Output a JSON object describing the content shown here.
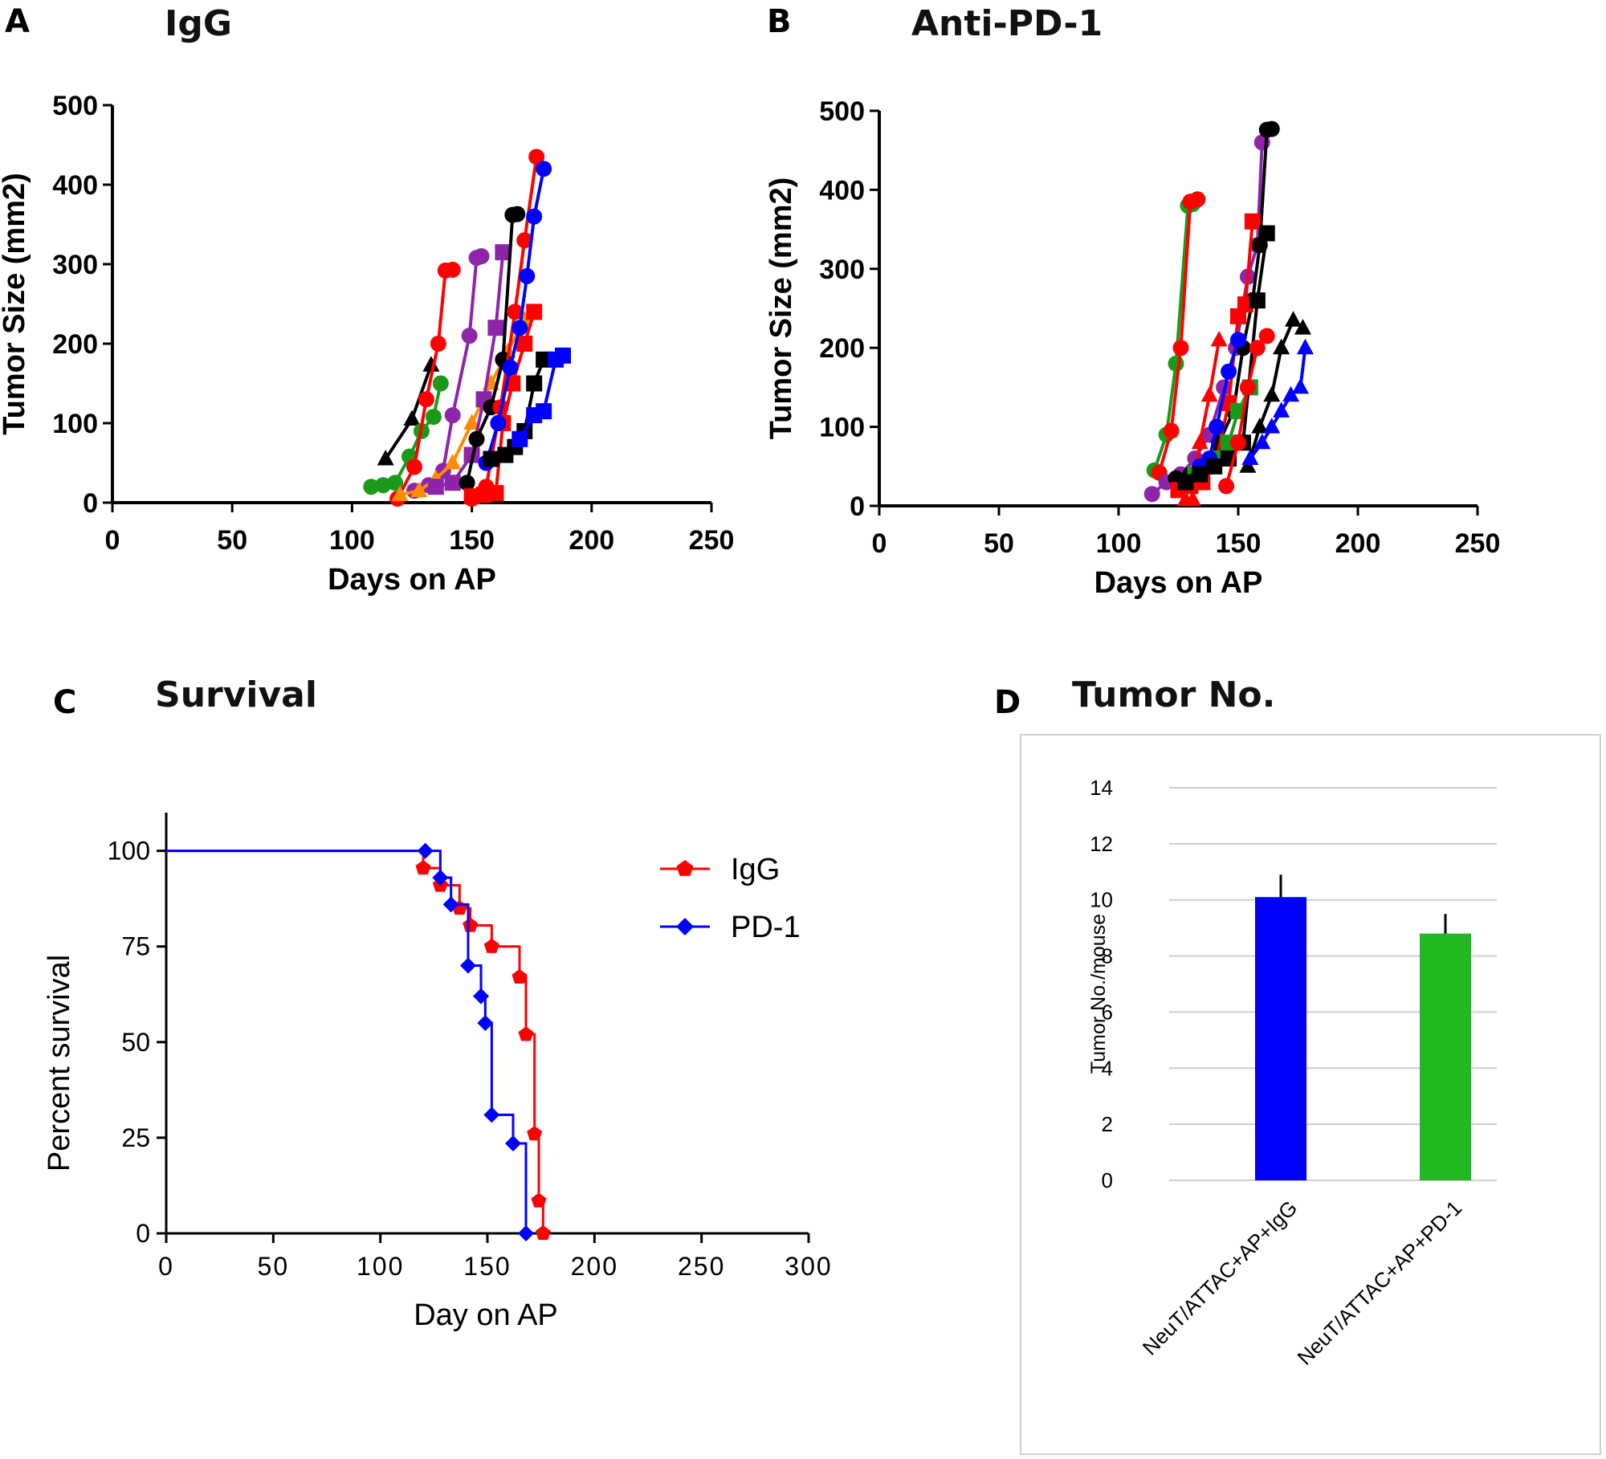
{
  "panels": {
    "A": {
      "letter": "A",
      "title": "IgG"
    },
    "B": {
      "letter": "B",
      "title": "Anti-PD-1"
    },
    "C": {
      "letter": "C",
      "title": "Survival"
    },
    "D": {
      "letter": "D",
      "title": "Tumor No."
    }
  },
  "chart_data": [
    {
      "id": "A",
      "type": "line",
      "title": "IgG",
      "xlabel": "Days on AP",
      "ylabel": "Tumor Size (mm2)",
      "xlim": [
        0,
        250
      ],
      "ylim": [
        0,
        500
      ],
      "xticks": [
        0,
        50,
        100,
        150,
        200,
        250
      ],
      "yticks": [
        0,
        100,
        200,
        300,
        400,
        500
      ],
      "grid": false,
      "series": [
        {
          "color": "#000000",
          "marker": "triangle",
          "points": [
            [
              114,
              55
            ],
            [
              125,
              105
            ],
            [
              133,
              173
            ]
          ]
        },
        {
          "color": "#1a9a1a",
          "marker": "circle",
          "points": [
            [
              108,
              20
            ],
            [
              113,
              22
            ],
            [
              118,
              25
            ],
            [
              124,
              58
            ],
            [
              129,
              90
            ],
            [
              134,
              108
            ],
            [
              137,
              150
            ]
          ]
        },
        {
          "color": "#ff0000",
          "marker": "circle",
          "points": [
            [
              119,
              5
            ],
            [
              126,
              45
            ],
            [
              131,
              130
            ],
            [
              136,
              200
            ],
            [
              139,
              292
            ],
            [
              142,
              293
            ]
          ]
        },
        {
          "color": "#8e24aa",
          "marker": "circle",
          "points": [
            [
              126,
              15
            ],
            [
              132,
              22
            ],
            [
              138,
              40
            ],
            [
              142,
              110
            ],
            [
              149,
              210
            ],
            [
              152,
              308
            ],
            [
              154,
              310
            ]
          ]
        },
        {
          "color": "#ff8c00",
          "marker": "triangle",
          "points": [
            [
              120,
              10
            ],
            [
              128,
              15
            ],
            [
              135,
              30
            ],
            [
              142,
              50
            ],
            [
              150,
              100
            ],
            [
              158,
              150
            ],
            [
              165,
              190
            ],
            [
              172,
              230
            ]
          ]
        },
        {
          "color": "#8e24aa",
          "marker": "square",
          "points": [
            [
              135,
              20
            ],
            [
              142,
              25
            ],
            [
              150,
              60
            ],
            [
              155,
              130
            ],
            [
              160,
              220
            ],
            [
              163,
              315
            ]
          ]
        },
        {
          "color": "#000000",
          "marker": "circle",
          "points": [
            [
              148,
              25
            ],
            [
              152,
              80
            ],
            [
              158,
              120
            ],
            [
              163,
              180
            ],
            [
              167,
              362
            ],
            [
              169,
              363
            ]
          ]
        },
        {
          "color": "#ff0000",
          "marker": "square",
          "points": [
            [
              150,
              8
            ],
            [
              155,
              10
            ],
            [
              160,
              12
            ],
            [
              163,
              100
            ],
            [
              167,
              150
            ],
            [
              172,
              200
            ],
            [
              176,
              240
            ]
          ]
        },
        {
          "color": "#ff0000",
          "marker": "circle",
          "points": [
            [
              150,
              5
            ],
            [
              156,
              20
            ],
            [
              162,
              120
            ],
            [
              168,
              240
            ],
            [
              172,
              330
            ],
            [
              177,
              435
            ]
          ]
        },
        {
          "color": "#0000ff",
          "marker": "circle",
          "points": [
            [
              156,
              50
            ],
            [
              161,
              100
            ],
            [
              166,
              170
            ],
            [
              170,
              220
            ],
            [
              173,
              285
            ],
            [
              176,
              360
            ],
            [
              180,
              420
            ]
          ]
        },
        {
          "color": "#000000",
          "marker": "square",
          "points": [
            [
              158,
              55
            ],
            [
              164,
              60
            ],
            [
              168,
              70
            ],
            [
              172,
              90
            ],
            [
              176,
              150
            ],
            [
              180,
              180
            ]
          ]
        },
        {
          "color": "#0000ff",
          "marker": "square",
          "points": [
            [
              170,
              80
            ],
            [
              176,
              110
            ],
            [
              180,
              115
            ],
            [
              185,
              180
            ],
            [
              188,
              185
            ]
          ]
        }
      ]
    },
    {
      "id": "B",
      "type": "line",
      "title": "Anti-PD-1",
      "xlabel": "Days on AP",
      "ylabel": "Tumor Size (mm2)",
      "xlim": [
        0,
        250
      ],
      "ylim": [
        0,
        500
      ],
      "xticks": [
        0,
        50,
        100,
        150,
        200,
        250
      ],
      "yticks": [
        0,
        100,
        200,
        300,
        400,
        500
      ],
      "grid": false,
      "series": [
        {
          "color": "#1a9a1a",
          "marker": "circle",
          "points": [
            [
              115,
              45
            ],
            [
              120,
              90
            ],
            [
              124,
              180
            ],
            [
              129,
              380
            ],
            [
              131,
              382
            ]
          ]
        },
        {
          "color": "#ff0000",
          "marker": "circle",
          "points": [
            [
              117,
              42
            ],
            [
              122,
              95
            ],
            [
              126,
              200
            ],
            [
              130,
              385
            ],
            [
              133,
              388
            ]
          ]
        },
        {
          "color": "#8e24aa",
          "marker": "circle",
          "points": [
            [
              114,
              15
            ],
            [
              120,
              30
            ],
            [
              126,
              40
            ],
            [
              132,
              60
            ],
            [
              138,
              90
            ],
            [
              144,
              150
            ],
            [
              149,
              200
            ],
            [
              154,
              290
            ],
            [
              158,
              330
            ],
            [
              160,
              460
            ]
          ]
        },
        {
          "color": "#000000",
          "marker": "circle",
          "points": [
            [
              124,
              35
            ],
            [
              130,
              40
            ],
            [
              136,
              50
            ],
            [
              142,
              80
            ],
            [
              148,
              120
            ],
            [
              152,
              200
            ],
            [
              156,
              260
            ],
            [
              159,
              330
            ],
            [
              162,
              476
            ],
            [
              164,
              477
            ]
          ]
        },
        {
          "color": "#ff0000",
          "marker": "square",
          "points": [
            [
              125,
              20
            ],
            [
              130,
              25
            ],
            [
              135,
              30
            ],
            [
              141,
              60
            ],
            [
              146,
              130
            ],
            [
              150,
              240
            ],
            [
              153,
              255
            ],
            [
              156,
              360
            ]
          ]
        },
        {
          "color": "#ff0000",
          "marker": "triangle",
          "points": [
            [
              128,
              8
            ],
            [
              131,
              8
            ],
            [
              134,
              80
            ],
            [
              138,
              140
            ],
            [
              142,
              210
            ]
          ]
        },
        {
          "color": "#1a9a1a",
          "marker": "square",
          "points": [
            [
              132,
              40
            ],
            [
              137,
              50
            ],
            [
              142,
              60
            ],
            [
              146,
              80
            ],
            [
              150,
              120
            ],
            [
              155,
              150
            ]
          ]
        },
        {
          "color": "#0000ff",
          "marker": "circle",
          "points": [
            [
              128,
              30
            ],
            [
              134,
              50
            ],
            [
              138,
              60
            ],
            [
              141,
              100
            ],
            [
              146,
              170
            ],
            [
              150,
              210
            ]
          ]
        },
        {
          "color": "#000000",
          "marker": "square",
          "points": [
            [
              128,
              30
            ],
            [
              134,
              40
            ],
            [
              140,
              50
            ],
            [
              146,
              60
            ],
            [
              152,
              80
            ],
            [
              158,
              260
            ],
            [
              162,
              345
            ]
          ]
        },
        {
          "color": "#ff0000",
          "marker": "circle",
          "points": [
            [
              145,
              25
            ],
            [
              150,
              80
            ],
            [
              154,
              150
            ],
            [
              158,
              200
            ],
            [
              162,
              215
            ]
          ]
        },
        {
          "color": "#000000",
          "marker": "triangle",
          "points": [
            [
              154,
              50
            ],
            [
              159,
              100
            ],
            [
              164,
              140
            ],
            [
              168,
              200
            ],
            [
              173,
              235
            ],
            [
              177,
              225
            ]
          ]
        },
        {
          "color": "#0000ff",
          "marker": "triangle",
          "points": [
            [
              155,
              60
            ],
            [
              160,
              80
            ],
            [
              164,
              100
            ],
            [
              168,
              120
            ],
            [
              172,
              140
            ],
            [
              176,
              150
            ],
            [
              178,
              200
            ]
          ]
        }
      ]
    },
    {
      "id": "C",
      "type": "line",
      "subtype": "survival-step",
      "title": "Survival",
      "xlabel": "Day on AP",
      "ylabel": "Percent survival",
      "xlim": [
        0,
        300
      ],
      "ylim": [
        0,
        110
      ],
      "xticks": [
        0,
        50,
        100,
        150,
        200,
        250,
        300
      ],
      "yticks": [
        0,
        25,
        50,
        75,
        100
      ],
      "grid": false,
      "legend_position": "top-right",
      "series": [
        {
          "name": "IgG",
          "color": "#ff0000",
          "marker": "pentagon",
          "steps": [
            [
              0,
              100
            ],
            [
              120,
              95.5
            ],
            [
              128,
              91
            ],
            [
              137,
              85
            ],
            [
              142,
              80.5
            ],
            [
              152,
              75
            ],
            [
              165,
              67
            ],
            [
              168,
              52
            ],
            [
              172,
              26
            ],
            [
              174,
              8.5
            ],
            [
              176,
              0
            ]
          ]
        },
        {
          "name": "PD-1",
          "color": "#0000ff",
          "marker": "diamond",
          "steps": [
            [
              0,
              100
            ],
            [
              121,
              100
            ],
            [
              128,
              93
            ],
            [
              133,
              86
            ],
            [
              141,
              70
            ],
            [
              147,
              62
            ],
            [
              149,
              55
            ],
            [
              152,
              31
            ],
            [
              162,
              23.5
            ],
            [
              168,
              0
            ]
          ]
        }
      ]
    },
    {
      "id": "D",
      "type": "bar",
      "title": "Tumor No.",
      "xlabel": "",
      "ylabel": "Tumor No./mouse",
      "ylim": [
        0,
        14
      ],
      "yticks": [
        0,
        2,
        4,
        6,
        8,
        10,
        12,
        14
      ],
      "grid": true,
      "categories": [
        "NeuT/ATTAC+AP+IgG",
        "NeuT/ATTAC+AP+PD-1"
      ],
      "values": [
        10.1,
        8.8
      ],
      "errors": [
        0.8,
        0.7
      ],
      "colors": [
        "#0000ff",
        "#22b822"
      ]
    }
  ]
}
